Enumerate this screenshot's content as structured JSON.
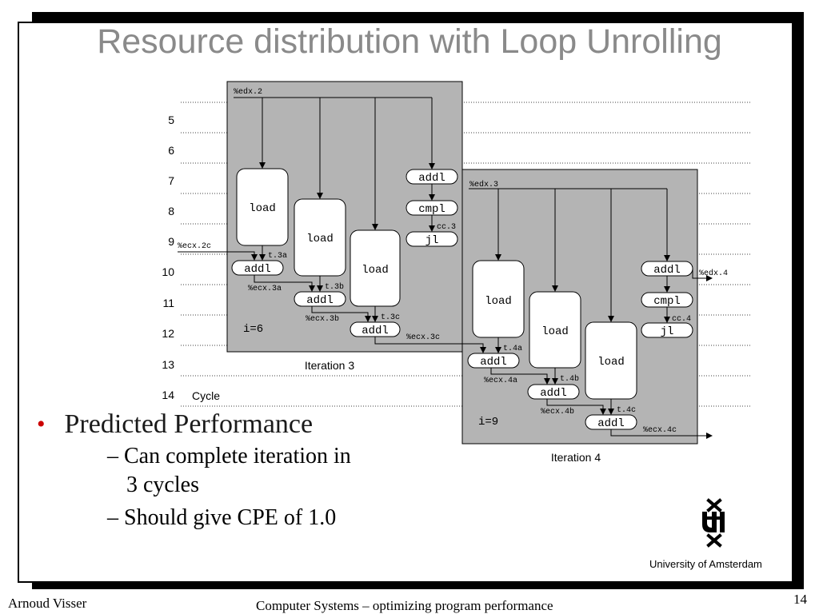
{
  "slide": {
    "title": "Resource distribution with Loop Unrolling",
    "footer_author": "Arnoud Visser",
    "footer_course": "Computer Systems – optimizing program  performance",
    "page_number": "14",
    "institution": "University  of Amsterdam"
  },
  "bullets": {
    "main": "Predicted Performance",
    "sub1_line1": "– Can complete iteration in",
    "sub1_line2": "3 cycles",
    "sub2": "– Should give CPE of 1.0"
  },
  "diagram": {
    "cycle_numbers": [
      "5",
      "6",
      "7",
      "8",
      "9",
      "10",
      "11",
      "12",
      "13",
      "14"
    ],
    "cycle_label": "Cycle",
    "iteration3": {
      "caption": "Iteration 3",
      "index_label": "i=6",
      "reg_in": "%edx.2",
      "ecx_in": "%ecx.2c",
      "ops": {
        "load": "load",
        "addl": "addl",
        "cmpl": "cmpl",
        "jl": "jl"
      },
      "temps": [
        "t.3a",
        "t.3b",
        "t.3c"
      ],
      "ecx_vals": [
        "%ecx.3a",
        "%ecx.3b",
        "%ecx.3c"
      ],
      "cc": "cc.3"
    },
    "iteration4": {
      "caption": "Iteration 4",
      "index_label": "i=9",
      "reg_in": "%edx.3",
      "reg_out": "%edx.4",
      "ops": {
        "load": "load",
        "addl": "addl",
        "cmpl": "cmpl",
        "jl": "jl"
      },
      "temps": [
        "t.4a",
        "t.4b",
        "t.4c"
      ],
      "ecx_vals": [
        "%ecx.4a",
        "%ecx.4b",
        "%ecx.4c"
      ],
      "cc": "cc.4"
    }
  }
}
